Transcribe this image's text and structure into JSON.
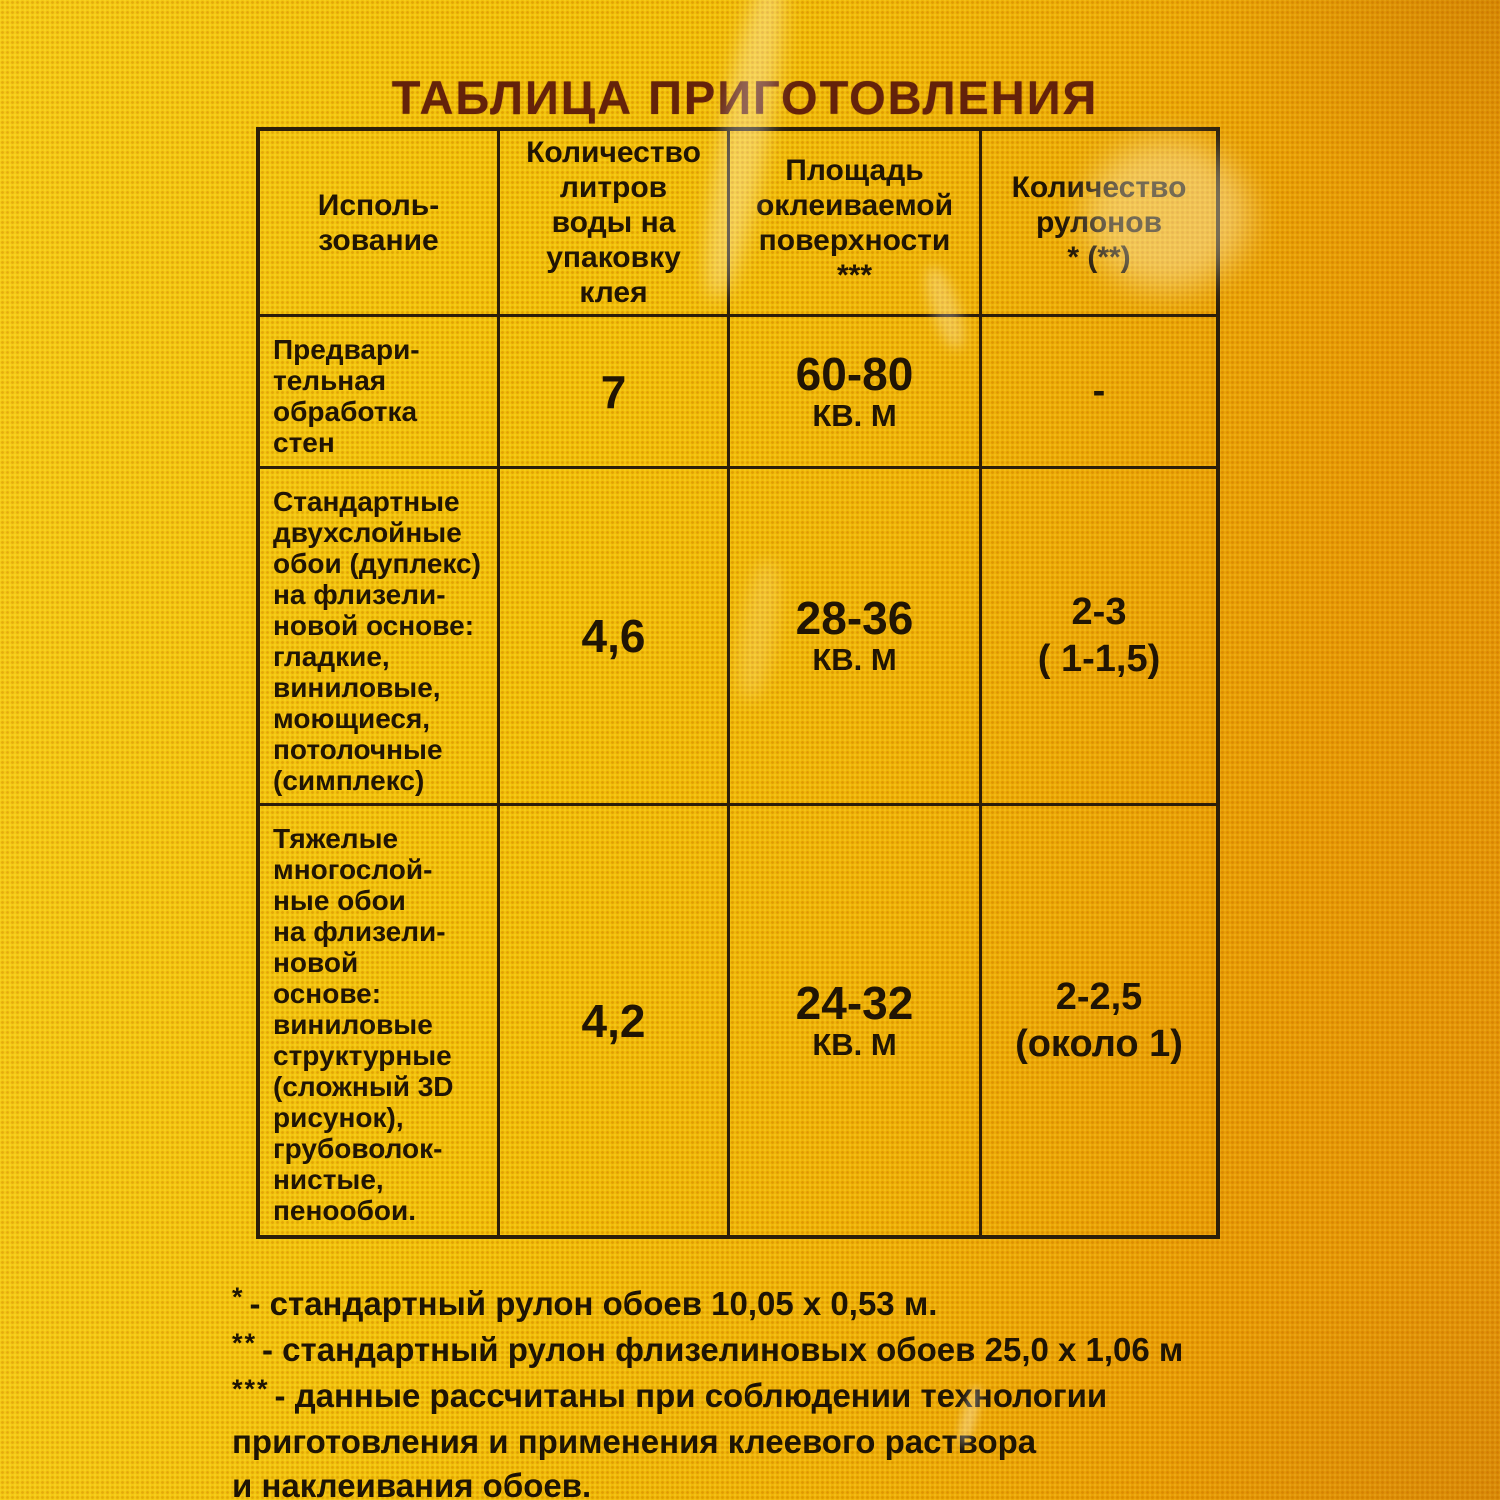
{
  "title": "ТАБЛИЦА ПРИГОТОВЛЕНИЯ",
  "table": {
    "headers": {
      "usage": "Исполь-\nзование",
      "water": "Количество\nлитров\nводы на\nупаковку\nклея",
      "area": "Площадь\nоклеиваемой\nповерхности\n***",
      "rolls": "Количество\nрулонов\n* (**)"
    },
    "rows": [
      {
        "usage": "Предвари-\nтельная\nобработка\nстен",
        "water": "7",
        "area_value": "60-80",
        "area_unit": "КВ. М",
        "rolls_value": "-",
        "rolls_note": ""
      },
      {
        "usage": "Стандартные\nдвухслойные\nобои (дуплекс)\nна флизели-\nновой основе:\nгладкие,\nвиниловые,\nмоющиеся,\nпотолочные\n(симплекс)",
        "water": "4,6",
        "area_value": "28-36",
        "area_unit": "КВ. М",
        "rolls_value": "2-3",
        "rolls_note": "( 1-1,5)"
      },
      {
        "usage": "Тяжелые\nмногослой-\nные обои\nна флизели-\nновой\nоснове:\nвиниловые\nструктурные\n(сложный 3D\nрисунок),\nгрубоволок-\nнистые,\nпенообои.",
        "water": "4,2",
        "area_value": "24-32",
        "area_unit": "КВ. М",
        "rolls_value": "2-2,5",
        "rolls_note": "(около 1)"
      }
    ]
  },
  "footnotes": [
    {
      "marker": "*",
      "text": "- стандартный рулон обоев 10,05 х 0,53 м."
    },
    {
      "marker": "**",
      "text": "- стандартный рулон флизелиновых обоев 25,0 х 1,06 м"
    },
    {
      "marker": "***",
      "text": "- данные рассчитаны при соблюдении технологии\nприготовления и применения клеевого раствора\nи наклеивания обоев."
    }
  ],
  "colors": {
    "background_yellow": "#f4c90d",
    "background_orange": "#e89c09",
    "table_border": "#2c1e09",
    "text": "#211504",
    "title": "#64220a"
  }
}
